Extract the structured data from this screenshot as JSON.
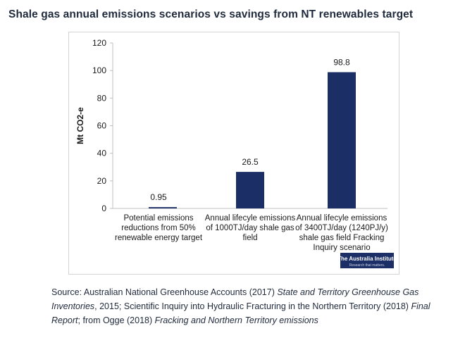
{
  "title": "Shale gas annual emissions scenarios vs savings from NT renewables target",
  "colors": {
    "bar": "#1b2e66",
    "axis": "#bfbfbf",
    "text": "#1a1a1a"
  },
  "chart_data": {
    "type": "bar",
    "ylabel": "Mt CO2-e",
    "ylim": [
      0,
      120
    ],
    "yticks": [
      0,
      20,
      40,
      60,
      80,
      100,
      120
    ],
    "grid": false,
    "categories": [
      [
        "Potential emissions",
        "reductions from 50%",
        "renewable energy target"
      ],
      [
        "Annual lifecyle emissions",
        "of 1000TJ/day shale gas",
        "field"
      ],
      [
        "Annual lifecyle emissions",
        "of 3400TJ/day (1240PJ/y)",
        "shale gas field Fracking",
        "Inquiry scenario"
      ]
    ],
    "values": [
      0.95,
      26.5,
      98.8
    ],
    "data_labels": [
      "0.95",
      "26.5",
      "98.8"
    ]
  },
  "logo": {
    "text": "The Australia Institute",
    "tagline": "Research that matters."
  },
  "source": {
    "p1": "Source: Australian National Greenhouse Accounts (2017) ",
    "i1": "State and Territory Greenhouse Gas Inventories",
    "p2": ", 2015; Scientific Inquiry into Hydraulic Fracturing in the Northern Territory (2018) ",
    "i2": "Final Report",
    "p3": "; from Ogge (2018) ",
    "i3": "Fracking and Northern Territory emissions"
  }
}
